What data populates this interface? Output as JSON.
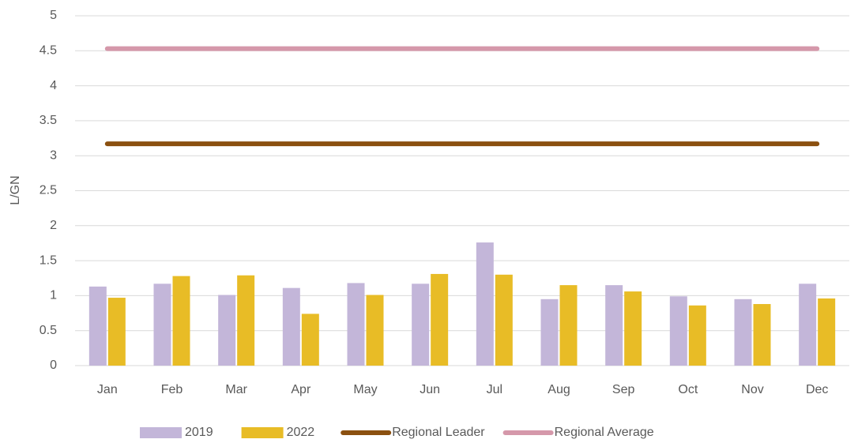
{
  "chart_data": {
    "type": "bar",
    "y_label": "L/GN",
    "categories": [
      "Jan",
      "Feb",
      "Mar",
      "Apr",
      "May",
      "Jun",
      "Jul",
      "Aug",
      "Sep",
      "Oct",
      "Nov",
      "Dec"
    ],
    "series": [
      {
        "name": "2019",
        "type": "bar",
        "color": "#c3b6d9",
        "values": [
          1.13,
          1.17,
          1.01,
          1.11,
          1.18,
          1.17,
          1.76,
          0.95,
          1.15,
          0.99,
          0.95,
          1.17
        ]
      },
      {
        "name": "2022",
        "type": "bar",
        "color": "#e8bc26",
        "values": [
          0.97,
          1.28,
          1.29,
          0.74,
          1.01,
          1.31,
          1.3,
          1.15,
          1.06,
          0.86,
          0.88,
          0.96
        ]
      },
      {
        "name": "Regional Leader",
        "type": "line",
        "color": "#8b5010",
        "values": [
          3.17,
          3.17,
          3.17,
          3.17,
          3.17,
          3.17,
          3.17,
          3.17,
          3.17,
          3.17,
          3.17,
          3.17
        ]
      },
      {
        "name": "Regional Average",
        "type": "line",
        "color": "#d598aa",
        "values": [
          4.53,
          4.53,
          4.53,
          4.53,
          4.53,
          4.53,
          4.53,
          4.53,
          4.53,
          4.53,
          4.53,
          4.53
        ]
      }
    ],
    "ylim": [
      0,
      5
    ],
    "yticks": [
      0,
      0.5,
      1,
      1.5,
      2,
      2.5,
      3,
      3.5,
      4,
      4.5,
      5
    ],
    "grid": true,
    "legend": "bottom"
  }
}
